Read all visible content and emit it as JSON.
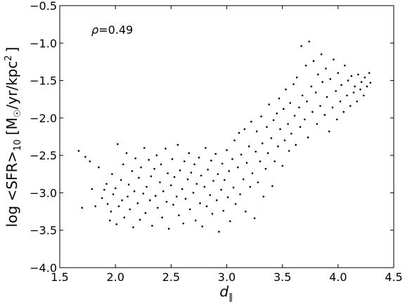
{
  "chart_data": {
    "type": "scatter",
    "title": "",
    "xlabel": "d",
    "xlabel_subscript": "∥",
    "ylabel": "log <SFR>",
    "ylabel_subscript": "10",
    "ylabel_units": "[M",
    "ylabel_sun": "☉",
    "ylabel_units_rest": "/yr/kpc",
    "ylabel_sup": "2",
    "ylabel_close": "]",
    "annotation_symbol": "ρ",
    "annotation_value": "=0.49",
    "xlim": [
      1.5,
      4.5
    ],
    "ylim": [
      -4.0,
      -0.5
    ],
    "xticks": [
      1.5,
      2.0,
      2.5,
      3.0,
      3.5,
      4.0,
      4.5
    ],
    "xtick_labels": [
      "1.5",
      "2.0",
      "2.5",
      "3.0",
      "3.5",
      "4.0",
      "4.5"
    ],
    "yticks": [
      -4.0,
      -3.5,
      -3.0,
      -2.5,
      -2.0,
      -1.5,
      -1.0,
      -0.5
    ],
    "ytick_labels": [
      "−4.0",
      "−3.5",
      "−3.0",
      "−2.5",
      "−2.0",
      "−1.5",
      "−1.0",
      "−0.5"
    ],
    "grid": false,
    "legend": "none",
    "marker_color": "#000000",
    "series": [
      {
        "points": [
          [
            1.67,
            -2.44
          ],
          [
            1.7,
            -3.2
          ],
          [
            1.73,
            -2.52
          ],
          [
            1.77,
            -2.58
          ],
          [
            1.79,
            -2.95
          ],
          [
            1.82,
            -3.18
          ],
          [
            1.85,
            -2.66
          ],
          [
            1.88,
            -3.07
          ],
          [
            1.9,
            -2.96
          ],
          [
            1.92,
            -2.88
          ],
          [
            1.93,
            -3.15
          ],
          [
            1.95,
            -3.37
          ],
          [
            1.96,
            -3.25
          ],
          [
            1.97,
            -2.75
          ],
          [
            1.98,
            -3.02
          ],
          [
            2.0,
            -2.94
          ],
          [
            2.01,
            -3.42
          ],
          [
            2.02,
            -2.35
          ],
          [
            2.03,
            -3.18
          ],
          [
            2.05,
            -2.83
          ],
          [
            2.06,
            -3.1
          ],
          [
            2.07,
            -2.62
          ],
          [
            2.08,
            -3.33
          ],
          [
            2.1,
            -2.47
          ],
          [
            2.11,
            -3.05
          ],
          [
            2.12,
            -2.89
          ],
          [
            2.13,
            -3.22
          ],
          [
            2.15,
            -2.71
          ],
          [
            2.16,
            -3.46
          ],
          [
            2.17,
            -2.98
          ],
          [
            2.18,
            -2.54
          ],
          [
            2.2,
            -3.14
          ],
          [
            2.21,
            -2.8
          ],
          [
            2.22,
            -3.36
          ],
          [
            2.23,
            -2.66
          ],
          [
            2.25,
            -3.01
          ],
          [
            2.26,
            -2.4
          ],
          [
            2.27,
            -3.27
          ],
          [
            2.28,
            -2.92
          ],
          [
            2.3,
            -2.56
          ],
          [
            2.31,
            -3.1
          ],
          [
            2.32,
            -2.78
          ],
          [
            2.33,
            -3.44
          ],
          [
            2.35,
            -2.68
          ],
          [
            2.36,
            -3.04
          ],
          [
            2.37,
            -2.5
          ],
          [
            2.38,
            -3.2
          ],
          [
            2.4,
            -2.86
          ],
          [
            2.41,
            -2.62
          ],
          [
            2.42,
            -3.33
          ],
          [
            2.43,
            -2.98
          ],
          [
            2.45,
            -2.41
          ],
          [
            2.46,
            -3.12
          ],
          [
            2.47,
            -2.74
          ],
          [
            2.48,
            -3.48
          ],
          [
            2.5,
            -2.9
          ],
          [
            2.51,
            -2.55
          ],
          [
            2.52,
            -3.16
          ],
          [
            2.53,
            -2.79
          ],
          [
            2.55,
            -3.05
          ],
          [
            2.56,
            -2.36
          ],
          [
            2.57,
            -3.3
          ],
          [
            2.58,
            -2.7
          ],
          [
            2.6,
            -2.95
          ],
          [
            2.61,
            -3.41
          ],
          [
            2.62,
            -2.58
          ],
          [
            2.63,
            -3.08
          ],
          [
            2.65,
            -2.82
          ],
          [
            2.66,
            -2.47
          ],
          [
            2.67,
            -3.22
          ],
          [
            2.68,
            -2.73
          ],
          [
            2.7,
            -3.0
          ],
          [
            2.71,
            -2.62
          ],
          [
            2.72,
            -3.37
          ],
          [
            2.73,
            -2.88
          ],
          [
            2.75,
            -2.53
          ],
          [
            2.76,
            -3.14
          ],
          [
            2.77,
            -2.77
          ],
          [
            2.78,
            -3.45
          ],
          [
            2.8,
            -2.92
          ],
          [
            2.81,
            -2.4
          ],
          [
            2.82,
            -3.18
          ],
          [
            2.83,
            -2.69
          ],
          [
            2.85,
            -3.03
          ],
          [
            2.86,
            -2.57
          ],
          [
            2.87,
            -3.28
          ],
          [
            2.88,
            -2.84
          ],
          [
            2.9,
            -2.48
          ],
          [
            2.91,
            -3.1
          ],
          [
            2.92,
            -2.75
          ],
          [
            2.93,
            -3.52
          ],
          [
            2.95,
            -2.96
          ],
          [
            2.96,
            -2.61
          ],
          [
            2.97,
            -3.24
          ],
          [
            2.98,
            -2.83
          ],
          [
            3.0,
            -2.43
          ],
          [
            3.01,
            -3.06
          ],
          [
            3.02,
            -2.71
          ],
          [
            3.03,
            -3.38
          ],
          [
            3.05,
            -2.55
          ],
          [
            3.06,
            -2.93
          ],
          [
            3.07,
            -2.3
          ],
          [
            3.08,
            -3.15
          ],
          [
            3.1,
            -2.66
          ],
          [
            3.11,
            -2.2
          ],
          [
            3.12,
            -3.02
          ],
          [
            3.13,
            -2.49
          ],
          [
            3.15,
            -2.82
          ],
          [
            3.16,
            -2.15
          ],
          [
            3.17,
            -3.25
          ],
          [
            3.18,
            -2.6
          ],
          [
            3.2,
            -2.38
          ],
          [
            3.21,
            -2.92
          ],
          [
            3.22,
            -2.05
          ],
          [
            3.23,
            -2.74
          ],
          [
            3.25,
            -3.34
          ],
          [
            3.26,
            -2.45
          ],
          [
            3.27,
            -2.18
          ],
          [
            3.28,
            -2.86
          ],
          [
            3.3,
            -2.58
          ],
          [
            3.31,
            -1.98
          ],
          [
            3.32,
            -2.34
          ],
          [
            3.33,
            -3.05
          ],
          [
            3.35,
            -2.68
          ],
          [
            3.36,
            -2.12
          ],
          [
            3.37,
            -2.47
          ],
          [
            3.38,
            -1.82
          ],
          [
            3.4,
            -2.27
          ],
          [
            3.41,
            -2.91
          ],
          [
            3.42,
            -2.03
          ],
          [
            3.43,
            -2.58
          ],
          [
            3.45,
            -1.94
          ],
          [
            3.46,
            -2.38
          ],
          [
            3.47,
            -1.74
          ],
          [
            3.48,
            -2.15
          ],
          [
            3.5,
            -2.64
          ],
          [
            3.51,
            -1.88
          ],
          [
            3.52,
            -2.3
          ],
          [
            3.53,
            -1.62
          ],
          [
            3.55,
            -2.08
          ],
          [
            3.56,
            -2.44
          ],
          [
            3.57,
            -1.8
          ],
          [
            3.58,
            -2.21
          ],
          [
            3.6,
            -1.55
          ],
          [
            3.61,
            -1.97
          ],
          [
            3.62,
            -2.36
          ],
          [
            3.63,
            -1.46
          ],
          [
            3.65,
            -1.86
          ],
          [
            3.66,
            -2.12
          ],
          [
            3.67,
            -1.04
          ],
          [
            3.68,
            -1.7
          ],
          [
            3.7,
            -2.02
          ],
          [
            3.71,
            -1.3
          ],
          [
            3.72,
            -1.78
          ],
          [
            3.73,
            -2.26
          ],
          [
            3.74,
            -0.98
          ],
          [
            3.76,
            -1.58
          ],
          [
            3.77,
            -1.92
          ],
          [
            3.78,
            -1.24
          ],
          [
            3.8,
            -1.66
          ],
          [
            3.81,
            -2.08
          ],
          [
            3.82,
            -1.42
          ],
          [
            3.84,
            -1.84
          ],
          [
            3.85,
            -1.15
          ],
          [
            3.86,
            -1.52
          ],
          [
            3.88,
            -1.96
          ],
          [
            3.89,
            -1.34
          ],
          [
            3.9,
            -1.72
          ],
          [
            3.92,
            -2.18
          ],
          [
            3.93,
            -1.48
          ],
          [
            3.95,
            -1.86
          ],
          [
            3.96,
            -1.22
          ],
          [
            3.98,
            -1.64
          ],
          [
            3.99,
            -2.02
          ],
          [
            4.0,
            -1.4
          ],
          [
            4.02,
            -1.78
          ],
          [
            4.03,
            -1.56
          ],
          [
            4.05,
            -1.92
          ],
          [
            4.06,
            -1.3
          ],
          [
            4.08,
            -1.7
          ],
          [
            4.09,
            -1.5
          ],
          [
            4.11,
            -1.84
          ],
          [
            4.12,
            -1.44
          ],
          [
            4.14,
            -1.66
          ],
          [
            4.15,
            -1.58
          ],
          [
            4.17,
            -1.78
          ],
          [
            4.18,
            -1.42
          ],
          [
            4.2,
            -1.62
          ],
          [
            4.21,
            -1.52
          ],
          [
            4.23,
            -1.7
          ],
          [
            4.24,
            -1.46
          ],
          [
            4.26,
            -1.58
          ],
          [
            4.28,
            -1.4
          ],
          [
            4.29,
            -1.53
          ]
        ]
      }
    ]
  }
}
